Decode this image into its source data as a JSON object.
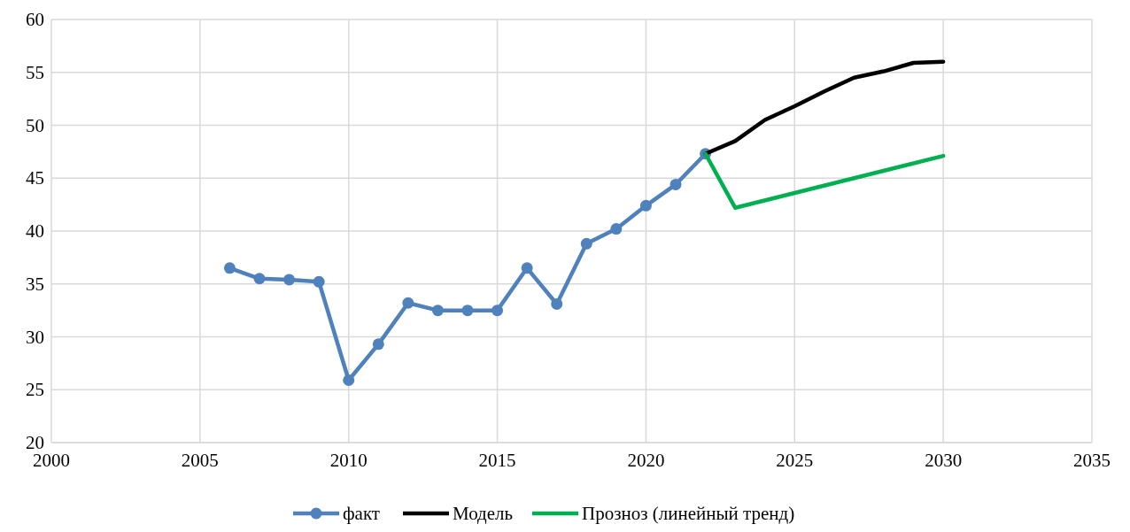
{
  "chart_data": {
    "type": "line",
    "xlim": [
      2000,
      2035
    ],
    "xticks": [
      2000,
      2005,
      2010,
      2015,
      2020,
      2025,
      2030,
      2035
    ],
    "ylim": [
      20,
      60
    ],
    "yticks": [
      20,
      25,
      30,
      35,
      40,
      45,
      50,
      55,
      60
    ],
    "grid": true,
    "legend": "bottom",
    "series": [
      {
        "name": "факт",
        "color": "#4f81bd",
        "marker": "circle",
        "x": [
          2006,
          2007,
          2008,
          2009,
          2010,
          2011,
          2012,
          2013,
          2014,
          2015,
          2016,
          2017,
          2018,
          2019,
          2020,
          2021,
          2022
        ],
        "values": [
          36.5,
          35.5,
          35.4,
          35.2,
          25.9,
          29.3,
          33.2,
          32.5,
          32.5,
          32.5,
          36.5,
          33.1,
          38.8,
          40.2,
          42.4,
          44.4,
          47.3
        ]
      },
      {
        "name": "Модель",
        "color": "#000000",
        "marker": "none",
        "x": [
          2022,
          2023,
          2024,
          2025,
          2026,
          2027,
          2028,
          2029,
          2030
        ],
        "values": [
          47.3,
          48.5,
          50.5,
          51.8,
          53.2,
          54.5,
          55.1,
          55.9,
          56.0
        ]
      },
      {
        "name": "Прозноз (линейный тренд)",
        "color": "#00b050",
        "marker": "none",
        "x": [
          2022,
          2023,
          2030
        ],
        "values": [
          47.3,
          42.2,
          47.1
        ]
      }
    ]
  }
}
